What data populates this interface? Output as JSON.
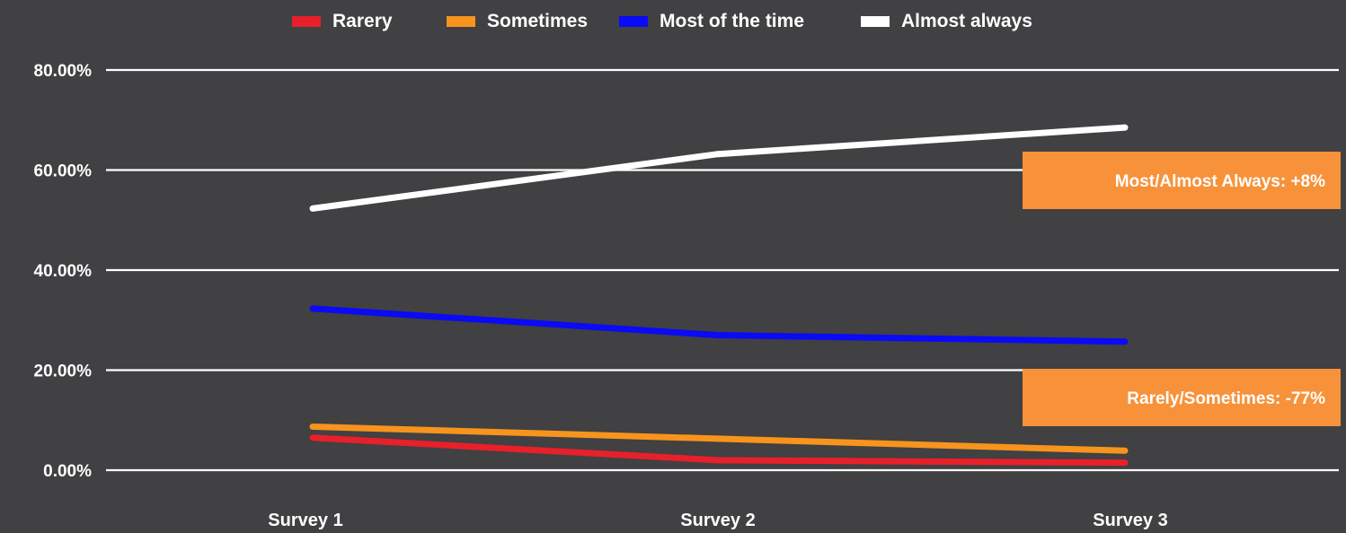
{
  "chart_data": {
    "type": "line",
    "categories": [
      "Survey 1",
      "Survey 2",
      "Survey 3"
    ],
    "series": [
      {
        "name": "Rarery",
        "color": "#e8202a",
        "values": [
          6.5,
          2.0,
          1.5
        ]
      },
      {
        "name": "Sometimes",
        "color": "#f7941d",
        "values": [
          8.7,
          6.3,
          3.9
        ]
      },
      {
        "name": "Most of the time",
        "color": "#0a0af5",
        "values": [
          32.3,
          27.0,
          25.7
        ]
      },
      {
        "name": "Almost always",
        "color": "#ffffff",
        "values": [
          52.3,
          63.2,
          68.5
        ]
      }
    ],
    "y_ticks": [
      "0.00%",
      "20.00%",
      "40.00%",
      "60.00%",
      "80.00%"
    ],
    "ylim": [
      0,
      80
    ],
    "grid": true,
    "legend_position": "top-center",
    "annotations": [
      {
        "text": "Most/Almost Always: +8%",
        "color": "#f7923a"
      },
      {
        "text": "Rarely/Sometimes: -77%",
        "color": "#f7923a"
      }
    ],
    "background_color": "#414042",
    "grid_color": "#ffffff"
  }
}
